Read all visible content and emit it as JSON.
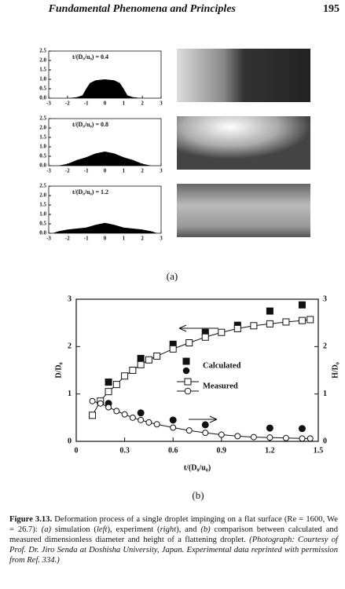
{
  "header": {
    "title": "Fundamental Phenomena and Principles",
    "page": "195"
  },
  "figure_labels": {
    "a": "(a)",
    "b": "(b)"
  },
  "chart_data": [
    {
      "type": "area",
      "title": "t/(D₀/u₀) = 0.4",
      "color": "#000000",
      "x": [
        -2,
        -1.5,
        -1.2,
        -1,
        -0.8,
        -0.5,
        0,
        0.5,
        0.8,
        1,
        1.2,
        1.5,
        2
      ],
      "values": [
        0,
        0.05,
        0.15,
        0.5,
        0.8,
        0.95,
        1.0,
        0.95,
        0.8,
        0.5,
        0.15,
        0.05,
        0
      ],
      "xlim": [
        -3,
        3
      ],
      "ylim": [
        0,
        2.5
      ],
      "xticks": [
        -3,
        -2,
        -1,
        0,
        1,
        2,
        3
      ],
      "yticks": [
        {
          "value": 0,
          "label": "0.0"
        },
        0.5,
        {
          "value": 1,
          "label": "1.0"
        },
        1.5,
        {
          "value": 2,
          "label": "2.0"
        },
        2.5
      ]
    },
    {
      "type": "area",
      "title": "t/(D₀/u₀) = 0.8",
      "color": "#000000",
      "x": [
        -2.5,
        -2,
        -1.5,
        -1,
        -0.5,
        0,
        0.5,
        1,
        1.5,
        2,
        2.5
      ],
      "values": [
        0,
        0.1,
        0.3,
        0.45,
        0.65,
        0.75,
        0.65,
        0.45,
        0.3,
        0.1,
        0
      ],
      "xlim": [
        -3,
        3
      ],
      "ylim": [
        0,
        2.5
      ],
      "xticks": [
        -3,
        -2,
        -1,
        0,
        1,
        2,
        3
      ],
      "yticks": [
        {
          "value": 0,
          "label": "0.0"
        },
        0.5,
        {
          "value": 1,
          "label": "1.0"
        },
        1.5,
        {
          "value": 2,
          "label": "2.0"
        },
        2.5
      ]
    },
    {
      "type": "area",
      "title": "t/(D₀/u₀) = 1.2",
      "color": "#000000",
      "x": [
        -2.8,
        -2.5,
        -2,
        -1.5,
        -1,
        -0.5,
        0,
        0.5,
        1,
        1.5,
        2,
        2.5,
        2.8
      ],
      "values": [
        0,
        0.1,
        0.2,
        0.25,
        0.3,
        0.45,
        0.55,
        0.45,
        0.3,
        0.25,
        0.2,
        0.1,
        0
      ],
      "xlim": [
        -3,
        3
      ],
      "ylim": [
        0,
        2.5
      ],
      "xticks": [
        -3,
        -2,
        -1,
        0,
        1,
        2,
        3
      ],
      "yticks": [
        {
          "value": 0,
          "label": "0.0"
        },
        0.5,
        {
          "value": 1,
          "label": "1.0"
        },
        1.5,
        {
          "value": 2,
          "label": "2.0"
        },
        2.5
      ]
    },
    {
      "type": "line",
      "x_label": "t/(D₀/u₀)",
      "y_label": "D/D₀",
      "y2_label": "H/D₀",
      "xlim": [
        0,
        1.5
      ],
      "xticks": [
        0,
        0.3,
        0.6,
        0.9,
        1.2,
        1.5
      ],
      "ylim": [
        0,
        3
      ],
      "yticks": [
        0,
        1,
        2,
        3
      ],
      "y2lim": [
        0,
        3
      ],
      "y2ticks": [
        0,
        1,
        2,
        3
      ],
      "series": [
        {
          "name": "Calculated",
          "marker": "square",
          "filled": true,
          "line": false,
          "color": "#111111",
          "x": [
            0.2,
            0.4,
            0.6,
            0.8,
            1.0,
            1.2,
            1.4
          ],
          "values": [
            1.25,
            1.75,
            2.05,
            2.3,
            2.45,
            2.75,
            2.88
          ]
        },
        {
          "marker": "circle",
          "filled": true,
          "line": false,
          "color": "#111111",
          "axis": "y2",
          "x": [
            0.2,
            0.4,
            0.6,
            0.8,
            1.2,
            1.4
          ],
          "values": [
            0.8,
            0.6,
            0.45,
            0.35,
            0.28,
            0.27
          ]
        },
        {
          "name": "Measured",
          "marker": "square",
          "filled": false,
          "line": true,
          "color": "#111111",
          "x": [
            0.1,
            0.15,
            0.2,
            0.25,
            0.3,
            0.35,
            0.4,
            0.45,
            0.5,
            0.6,
            0.7,
            0.8,
            0.9,
            1.0,
            1.1,
            1.2,
            1.3,
            1.4,
            1.45
          ],
          "values": [
            0.55,
            0.85,
            1.05,
            1.2,
            1.38,
            1.5,
            1.62,
            1.72,
            1.8,
            1.95,
            2.08,
            2.2,
            2.3,
            2.38,
            2.44,
            2.48,
            2.52,
            2.55,
            2.57
          ]
        },
        {
          "marker": "circle",
          "filled": false,
          "line": true,
          "color": "#111111",
          "axis": "y2",
          "x": [
            0.1,
            0.15,
            0.2,
            0.25,
            0.3,
            0.35,
            0.4,
            0.45,
            0.5,
            0.6,
            0.7,
            0.8,
            0.9,
            1.0,
            1.1,
            1.2,
            1.3,
            1.4,
            1.45
          ],
          "values": [
            0.85,
            0.8,
            0.72,
            0.64,
            0.57,
            0.5,
            0.45,
            0.4,
            0.36,
            0.29,
            0.23,
            0.18,
            0.14,
            0.11,
            0.09,
            0.08,
            0.07,
            0.06,
            0.06
          ]
        }
      ]
    }
  ],
  "caption": {
    "label": "Figure 3.13.",
    "parts": [
      {
        "text": " Deformation process of a single droplet impinging on a flat surface (Re = 1600, We = 26.7): ",
        "italic": false
      },
      {
        "text": "(a)",
        "italic": true
      },
      {
        "text": " simulation (",
        "italic": false
      },
      {
        "text": "left",
        "italic": true
      },
      {
        "text": "), experiment (",
        "italic": false
      },
      {
        "text": "right",
        "italic": true
      },
      {
        "text": "), and ",
        "italic": false
      },
      {
        "text": "(b)",
        "italic": true
      },
      {
        "text": " comparison between calculated and measured dimensionless diameter and height of a flattening droplet. ",
        "italic": false
      },
      {
        "text": "(Photograph: Courtesy of Prof. Dr. Jiro Senda at Doshisha University, Japan. Experimental data reprinted with permission from Ref. 334.)",
        "italic": true
      }
    ]
  }
}
